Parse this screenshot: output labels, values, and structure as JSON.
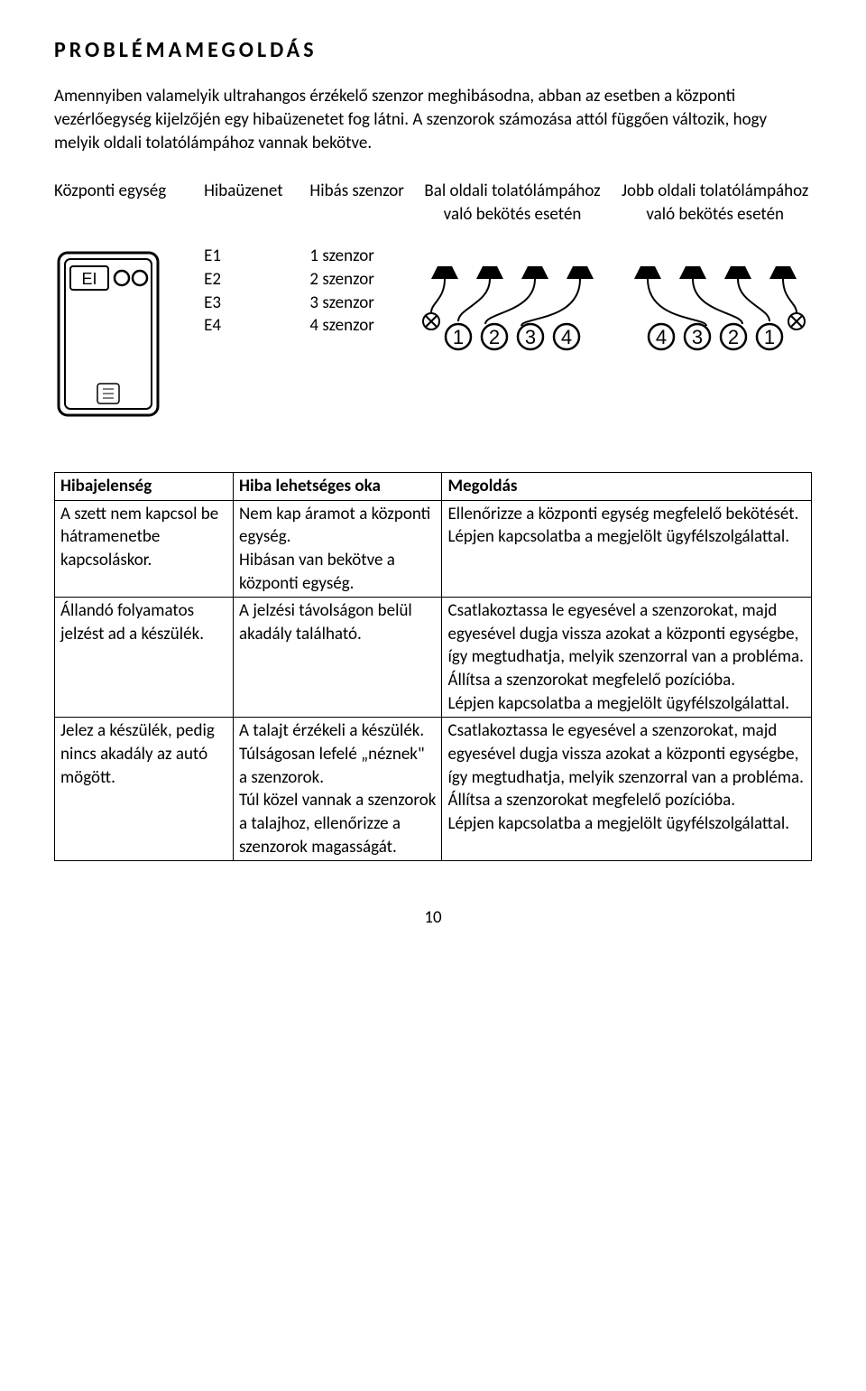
{
  "title": "PROBLÉMAMEGOLDÁS",
  "intro": "Amennyiben valamelyik ultrahangos érzékelő szenzor meghibásodna, abban az esetben a központi vezérlőegység kijelzőjén egy hibaüzenetet fog látni. A szenzorok számozása attól függően változik, hogy melyik oldali tolatólámpához vannak bekötve.",
  "errorTable": {
    "headers": {
      "unit": "Központi egység",
      "code": "Hibaüzenet",
      "sensor": "Hibás szenzor",
      "left": "Bal oldali tolatólámpához való bekötés esetén",
      "right": "Jobb oldali tolatólámpához való bekötés esetén"
    },
    "rows": [
      {
        "code": "E1",
        "sensor": "1 szenzor"
      },
      {
        "code": "E2",
        "sensor": "2 szenzor"
      },
      {
        "code": "E3",
        "sensor": "3 szenzor"
      },
      {
        "code": "E4",
        "sensor": "4 szenzor"
      }
    ]
  },
  "troubleshoot": {
    "headers": {
      "c1": "Hibajelenség",
      "c2": "Hiba lehetséges oka",
      "c3": "Megoldás"
    },
    "rows": [
      {
        "c1": "A szett nem kapcsol be hátramenetbe kapcsoláskor.",
        "c2": "Nem kap áramot a központi egység.\nHibásan van bekötve a központi egység.",
        "c3": "Ellenőrizze a központi egység megfelelő bekötését.\nLépjen kapcsolatba a megjelölt ügyfélszolgálattal."
      },
      {
        "c1": "Állandó folyamatos jelzést ad a készülék.",
        "c2": "A jelzési távolságon belül akadály található.",
        "c3": "Csatlakoztassa le egyesével a szenzorokat, majd egyesével dugja vissza azokat a központi egységbe, így megtudhatja, melyik szenzorral van a probléma.\nÁllítsa a szenzorokat megfelelő pozícióba.\nLépjen kapcsolatba a megjelölt ügyfélszolgálattal."
      },
      {
        "c1": "Jelez a készülék, pedig nincs akadály az autó mögött.",
        "c2": "A talajt érzékeli a készülék. Túlságosan lefelé „néznek\" a szenzorok.\nTúl közel vannak a szenzorok a talajhoz, ellenőrizze a szenzorok magasságát.",
        "c3": "Csatlakoztassa le egyesével a szenzorokat, majd egyesével dugja vissza azokat a központi egységbe, így megtudhatja, melyik szenzorral van a probléma.\nÁllítsa a szenzorokat megfelelő pozícióba.\nLépjen kapcsolatba a megjelölt ügyfélszolgálattal."
      }
    ]
  },
  "pageNumber": "10",
  "colors": {
    "text": "#000000",
    "bg": "#ffffff",
    "border": "#000000"
  }
}
